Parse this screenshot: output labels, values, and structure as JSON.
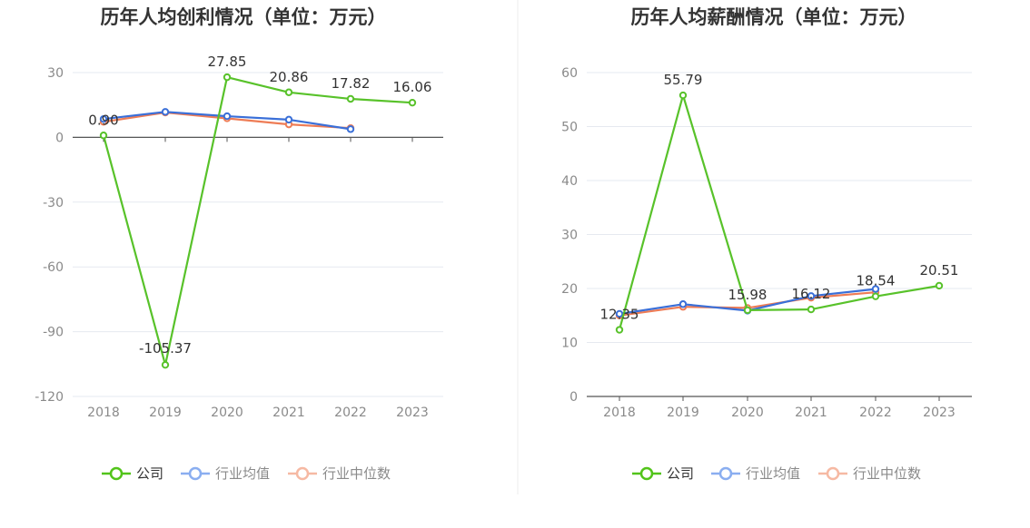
{
  "colors": {
    "company": "#58c22a",
    "industry_avg": "#3a6fd8",
    "industry_median": "#ee7c55",
    "legend_company": "#52c41a",
    "legend_avg": "#8aaef0",
    "legend_median": "#f6b9a3",
    "grid": "#e6e9f0",
    "axis": "#555555",
    "divider": "#eeeeee"
  },
  "legend": {
    "company": "公司",
    "industry_avg": "行业均值",
    "industry_median": "行业中位数"
  },
  "chart_data": [
    {
      "type": "line",
      "title": "历年人均创利情况（单位：万元）",
      "xlabel": "",
      "ylabel": "",
      "categories": [
        "2018",
        "2019",
        "2020",
        "2021",
        "2022",
        "2023"
      ],
      "ylim": [
        -120,
        30
      ],
      "yticks": [
        30,
        0,
        -30,
        -60,
        -90,
        -120
      ],
      "ytick_labels": [
        "30",
        "0",
        "-30",
        "-60",
        "-90",
        "-120"
      ],
      "series": [
        {
          "name": "公司",
          "key": "company",
          "values": [
            0.9,
            -105.37,
            27.85,
            20.86,
            17.82,
            16.06
          ]
        },
        {
          "name": "行业均值",
          "key": "industry_avg",
          "values": [
            8.5,
            11.8,
            9.8,
            8.2,
            3.8,
            null
          ]
        },
        {
          "name": "行业中位数",
          "key": "industry_median",
          "values": [
            7.2,
            11.5,
            8.8,
            6.0,
            4.3,
            null
          ]
        }
      ],
      "data_labels": [
        {
          "category_index": 0,
          "value": 0.9,
          "text": "0.90"
        },
        {
          "category_index": 1,
          "value": -105.37,
          "text": "-105.37"
        },
        {
          "category_index": 2,
          "value": 27.85,
          "text": "27.85"
        },
        {
          "category_index": 3,
          "value": 20.86,
          "text": "20.86"
        },
        {
          "category_index": 4,
          "value": 17.82,
          "text": "17.82"
        },
        {
          "category_index": 5,
          "value": 16.06,
          "text": "16.06"
        }
      ]
    },
    {
      "type": "line",
      "title": "历年人均薪酬情况（单位：万元）",
      "xlabel": "",
      "ylabel": "",
      "categories": [
        "2018",
        "2019",
        "2020",
        "2021",
        "2022",
        "2023"
      ],
      "ylim": [
        0,
        60
      ],
      "yticks": [
        60,
        50,
        40,
        30,
        20,
        10,
        0
      ],
      "ytick_labels": [
        "60",
        "50",
        "40",
        "30",
        "20",
        "10",
        "0"
      ],
      "series": [
        {
          "name": "公司",
          "key": "company",
          "values": [
            12.35,
            55.79,
            15.98,
            16.12,
            18.54,
            20.51
          ]
        },
        {
          "name": "行业均值",
          "key": "industry_avg",
          "values": [
            15.3,
            17.1,
            15.9,
            18.6,
            19.9,
            null
          ]
        },
        {
          "name": "行业中位数",
          "key": "industry_median",
          "values": [
            15.0,
            16.6,
            16.4,
            18.3,
            19.3,
            null
          ]
        }
      ],
      "data_labels": [
        {
          "category_index": 0,
          "value": 12.35,
          "text": "12.35"
        },
        {
          "category_index": 1,
          "value": 55.79,
          "text": "55.79"
        },
        {
          "category_index": 2,
          "value": 15.98,
          "text": "15.98"
        },
        {
          "category_index": 3,
          "value": 16.12,
          "text": "16.12"
        },
        {
          "category_index": 4,
          "value": 18.54,
          "text": "18.54"
        },
        {
          "category_index": 5,
          "value": 20.51,
          "text": "20.51"
        }
      ]
    }
  ]
}
